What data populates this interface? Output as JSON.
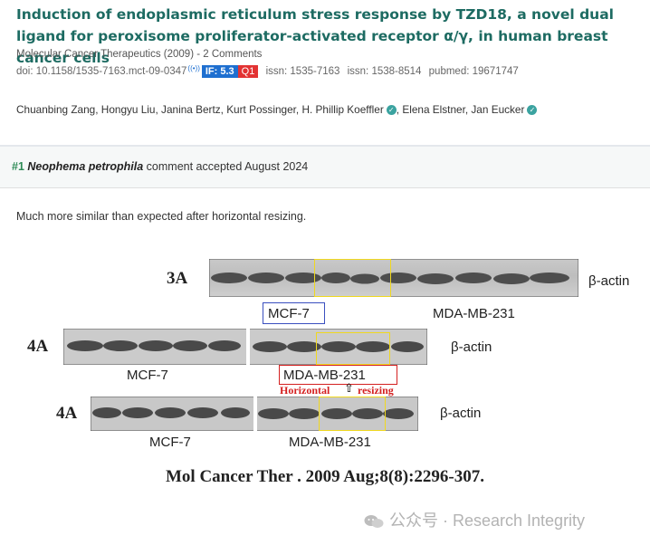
{
  "paper": {
    "title": "Induction of endoplasmic reticulum stress response by TZD18, a novel dual ligand for peroxisome proliferator-activated receptor α/γ, in human breast cancer cells",
    "journal_line": "Molecular Cancer Therapeutics (2009) - 2 Comments",
    "doi": "doi: 10.1158/1535-7163.mct-09-0347",
    "if_badge": "IF: 5.3",
    "quartile_badge": "Q1",
    "issn1": "issn: 1535-7163",
    "issn2": "issn: 1538-8514",
    "pubmed": "pubmed: 19671747",
    "authors": [
      "Chuanbing Zang",
      "Hongyu Liu",
      "Janina Bertz",
      "Kurt Possinger",
      "H. Phillip Koeffler",
      "Elena Elstner",
      "Jan Eucker"
    ]
  },
  "comment": {
    "number": "#1",
    "commenter": "Neophema petrophila",
    "status": "comment accepted August 2024",
    "body": "Much more similar than expected after horizontal resizing."
  },
  "figure": {
    "panel_3a": "3A",
    "panel_4a_top": "4A",
    "panel_4a_bottom": "4A",
    "beta_actin": "β-actin",
    "mcf7": "MCF-7",
    "mda": "MDA-MB-231",
    "note_left": "Horizontal",
    "note_right": "resizing",
    "citation": "Mol Cancer Ther . 2009 Aug;8(8):2296-307."
  },
  "watermark": "公众号 · Research Integrity",
  "colors": {
    "title": "#1d6b62",
    "if_badge": "#1e6fd0",
    "q1_badge": "#e33333",
    "highlight": "#f0d820",
    "blue_box": "#3a4fbf",
    "red_box": "#d42020"
  }
}
